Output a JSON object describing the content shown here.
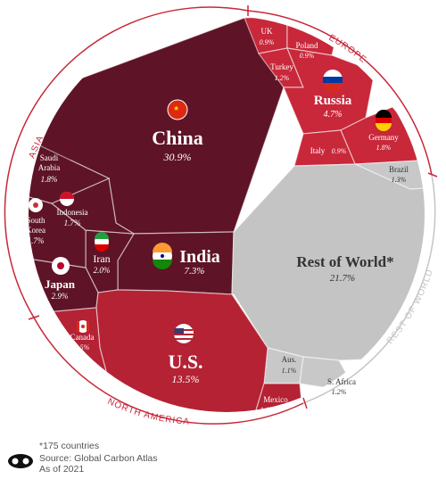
{
  "chart_data": {
    "type": "voronoi-treemap",
    "unit": "%",
    "groups": [
      {
        "name": "ASIA",
        "items": [
          {
            "name": "China",
            "value": 30.9
          },
          {
            "name": "India",
            "value": 7.3
          },
          {
            "name": "Japan",
            "value": 2.9
          },
          {
            "name": "Iran",
            "value": 2.0
          },
          {
            "name": "Saudi Arabia",
            "value": 1.8
          },
          {
            "name": "Indonesia",
            "value": 1.7
          },
          {
            "name": "South Korea",
            "value": 1.7
          }
        ]
      },
      {
        "name": "EUROPE",
        "items": [
          {
            "name": "Russia",
            "value": 4.7
          },
          {
            "name": "Germany",
            "value": 1.8
          },
          {
            "name": "Turkey",
            "value": 1.2
          },
          {
            "name": "UK",
            "value": 0.9
          },
          {
            "name": "Poland",
            "value": 0.9
          },
          {
            "name": "Italy",
            "value": 0.9
          }
        ]
      },
      {
        "name": "NORTH AMERICA",
        "items": [
          {
            "name": "U.S.",
            "value": 13.5
          },
          {
            "name": "Canada",
            "value": 1.5
          },
          {
            "name": "Mexico",
            "value": 1.1
          }
        ]
      },
      {
        "name": "REST OF WORLD",
        "items": [
          {
            "name": "Rest of World*",
            "value": 21.7
          },
          {
            "name": "Brazil",
            "value": 1.3
          },
          {
            "name": "Aus.",
            "value": 1.1
          },
          {
            "name": "S. Africa",
            "value": 1.2
          }
        ]
      }
    ]
  },
  "colors": {
    "asia": "#5e1426",
    "europe": "#c8283a",
    "north_america": "#b42234",
    "rest_of_world": "#c4c4c4",
    "ring": "#c8283a",
    "rest_ring": "#c4c4c4"
  },
  "flag_icons": [
    "china-flag-icon",
    "india-flag-icon",
    "japan-flag-icon",
    "iran-flag-icon",
    "south-korea-flag-icon",
    "indonesia-flag-icon",
    "russia-flag-icon",
    "germany-flag-icon",
    "us-flag-icon",
    "canada-flag-icon"
  ],
  "footer": {
    "note": "*175 countries",
    "source": "Source: Global Carbon Atlas",
    "as_of": "As of 2021"
  }
}
